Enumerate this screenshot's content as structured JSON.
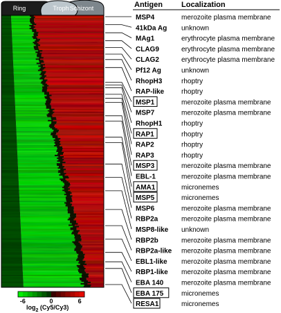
{
  "stages": [
    {
      "label": "Ring",
      "fill": "#1c1c1c",
      "text_color": "#ffffff"
    },
    {
      "label": "Troph",
      "fill": "#bcc6cc",
      "text_color": "#ffffff"
    },
    {
      "label": "Schizont",
      "fill": "#7d868c",
      "text_color": "#ffffff"
    }
  ],
  "table": {
    "header_antigen": "Antigen",
    "header_localization": "Localization",
    "rows": [
      {
        "antigen": "MSP4",
        "localization": "merozoite plasma membrane",
        "boxed": false,
        "row_fraction": 0.0
      },
      {
        "antigen": "41kDa Ag",
        "localization": "unknown",
        "boxed": false,
        "row_fraction": 0.03
      },
      {
        "antigen": "MAg1",
        "localization": "erythrocyte plasma membrane",
        "boxed": false,
        "row_fraction": 0.06
      },
      {
        "antigen": "CLAG9",
        "localization": "erythrocyte plasma membrane",
        "boxed": false,
        "row_fraction": 0.09
      },
      {
        "antigen": "CLAG2",
        "localization": "erythrocyte plasma membrane",
        "boxed": false,
        "row_fraction": 0.115
      },
      {
        "antigen": "Pf12 Ag",
        "localization": "unknown",
        "boxed": false,
        "row_fraction": 0.14
      },
      {
        "antigen": "RhopH3",
        "localization": "rhoptry",
        "boxed": false,
        "row_fraction": 0.16
      },
      {
        "antigen": "RAP-like",
        "localization": "rhoptry",
        "boxed": false,
        "row_fraction": 0.19
      },
      {
        "antigen": "MSP1",
        "localization": "merozoite plasma membrane",
        "boxed": true,
        "row_fraction": 0.245
      },
      {
        "antigen": "MSP7",
        "localization": "merozoite plasma membrane",
        "boxed": false,
        "row_fraction": 0.255
      },
      {
        "antigen": "RhopH1",
        "localization": "rhoptry",
        "boxed": false,
        "row_fraction": 0.265
      },
      {
        "antigen": "RAP1",
        "localization": "rhoptry",
        "boxed": true,
        "row_fraction": 0.29
      },
      {
        "antigen": "RAP2",
        "localization": "rhoptry",
        "boxed": false,
        "row_fraction": 0.305
      },
      {
        "antigen": "RAP3",
        "localization": "rhoptry",
        "boxed": false,
        "row_fraction": 0.32
      },
      {
        "antigen": "MSP3",
        "localization": "merozoite plasma membrane",
        "boxed": true,
        "row_fraction": 0.37
      },
      {
        "antigen": "EBL-1",
        "localization": "merozoite plasma membrane",
        "boxed": false,
        "row_fraction": 0.39
      },
      {
        "antigen": "AMA1",
        "localization": "micronemes",
        "boxed": true,
        "row_fraction": 0.45
      },
      {
        "antigen": "MSP5",
        "localization": "micronemes",
        "boxed": true,
        "row_fraction": 0.47
      },
      {
        "antigen": "MSP6",
        "localization": "merozoite plasma membrane",
        "boxed": false,
        "row_fraction": 0.55
      },
      {
        "antigen": "RBP2a",
        "localization": "merozoite plasma membrane",
        "boxed": false,
        "row_fraction": 0.6
      },
      {
        "antigen": "MSP8-like",
        "localization": "unknown",
        "boxed": false,
        "row_fraction": 0.65
      },
      {
        "antigen": "RBP2b",
        "localization": "merozoite plasma membrane",
        "boxed": false,
        "row_fraction": 0.72
      },
      {
        "antigen": "RBP2a-like",
        "localization": "merozoite plasma membrane",
        "boxed": false,
        "row_fraction": 0.78
      },
      {
        "antigen": "EBL1-like",
        "localization": "merozoite plasma membrane",
        "boxed": false,
        "row_fraction": 0.83
      },
      {
        "antigen": "RBP1-like",
        "localization": "merozoite plasma membrane",
        "boxed": false,
        "row_fraction": 0.88
      },
      {
        "antigen": "EBA 140",
        "localization": "merozoite plasma membrane",
        "boxed": false,
        "row_fraction": 0.915
      },
      {
        "antigen": "EBA 175",
        "localization": "micronemes",
        "boxed": true,
        "row_fraction": 0.94
      },
      {
        "antigen": "RESA1",
        "localization": "micronemes",
        "boxed": true,
        "row_fraction": 1.0
      }
    ]
  },
  "colorbar": {
    "ticks": [
      "-6",
      "0",
      "6"
    ],
    "tick_values": [
      -6,
      0,
      6
    ],
    "range": [
      -7,
      7
    ],
    "label_main": "log",
    "label_sub": "2",
    "label_rest": " (Cy5/Cy3)",
    "low_color": "#00e000",
    "mid_color": "#000000",
    "high_color": "#e02020"
  }
}
